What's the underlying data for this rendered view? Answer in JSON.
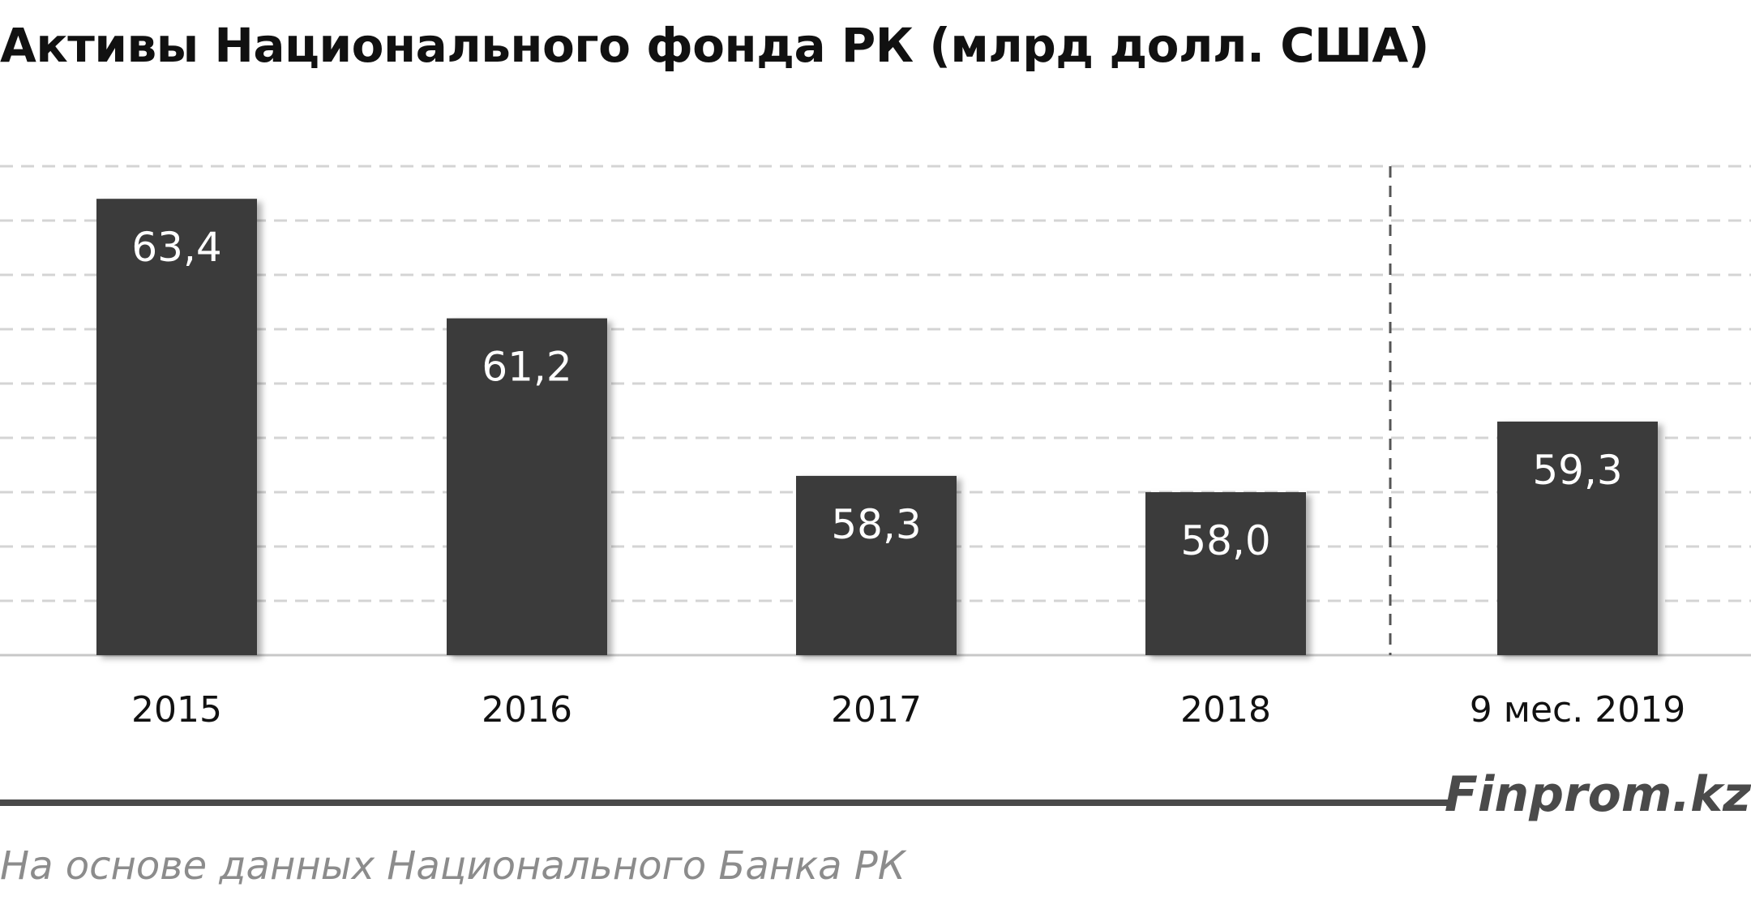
{
  "title": "Активы Национального фонда РК (млрд долл. США)",
  "brand": "Finprom.kz",
  "source": "На основе данных  Национального  Банка РК",
  "colors": {
    "bar": "#3a3a3a",
    "label": "#ffffff",
    "grid": "#d4d4d4",
    "axis": "#c8c8c8",
    "divider": "#555555",
    "text": "#111111"
  },
  "chart_data": {
    "type": "bar",
    "title": "Активы Национального фонда РК (млрд долл. США)",
    "categories": [
      "2015",
      "2016",
      "2017",
      "2018",
      "9 мес. 2019"
    ],
    "values": [
      63.4,
      61.2,
      58.3,
      58.0,
      59.3
    ],
    "data_labels": [
      "63,4",
      "61,2",
      "58,3",
      "58,0",
      "59,3"
    ],
    "ylim": [
      55,
      64
    ],
    "grid": true,
    "xlabel": "",
    "ylabel": ""
  }
}
